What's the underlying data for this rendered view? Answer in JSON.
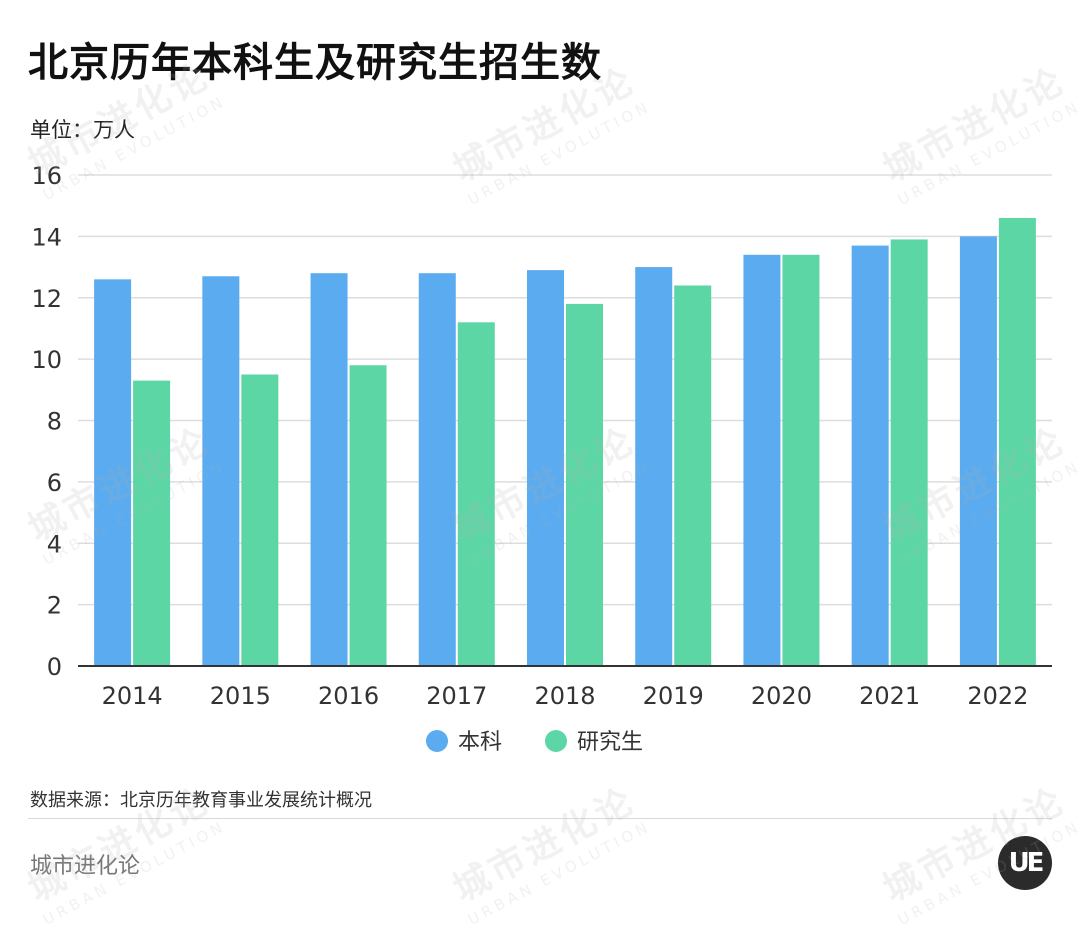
{
  "header": {
    "title": "北京历年本科生及研究生招生数",
    "unit": "单位：万人"
  },
  "footer": {
    "source": "数据来源：北京历年教育事业发展统计概况",
    "brand": "城市进化论",
    "logo_text": "UE"
  },
  "watermark": {
    "cn": "城市进化论",
    "en": "URBAN EVOLUTION"
  },
  "colors": {
    "undergrad": "#5aabf0",
    "graduate": "#5dd6a6",
    "grid": "#dddddd",
    "axis": "#333333"
  },
  "chart_data": {
    "type": "bar",
    "title": "北京历年本科生及研究生招生数",
    "ylabel": "单位：万人",
    "ylim": [
      0,
      16
    ],
    "yticks": [
      0,
      2,
      4,
      6,
      8,
      10,
      12,
      14,
      16
    ],
    "categories": [
      "2014",
      "2015",
      "2016",
      "2017",
      "2018",
      "2019",
      "2020",
      "2021",
      "2022"
    ],
    "series": [
      {
        "name": "本科",
        "values": [
          12.6,
          12.7,
          12.8,
          12.8,
          12.9,
          13.0,
          13.4,
          13.7,
          14.0
        ]
      },
      {
        "name": "研究生",
        "values": [
          9.3,
          9.5,
          9.8,
          11.2,
          11.8,
          12.4,
          13.4,
          13.9,
          14.6
        ]
      }
    ],
    "legend": "bottom-center",
    "grid": true
  }
}
